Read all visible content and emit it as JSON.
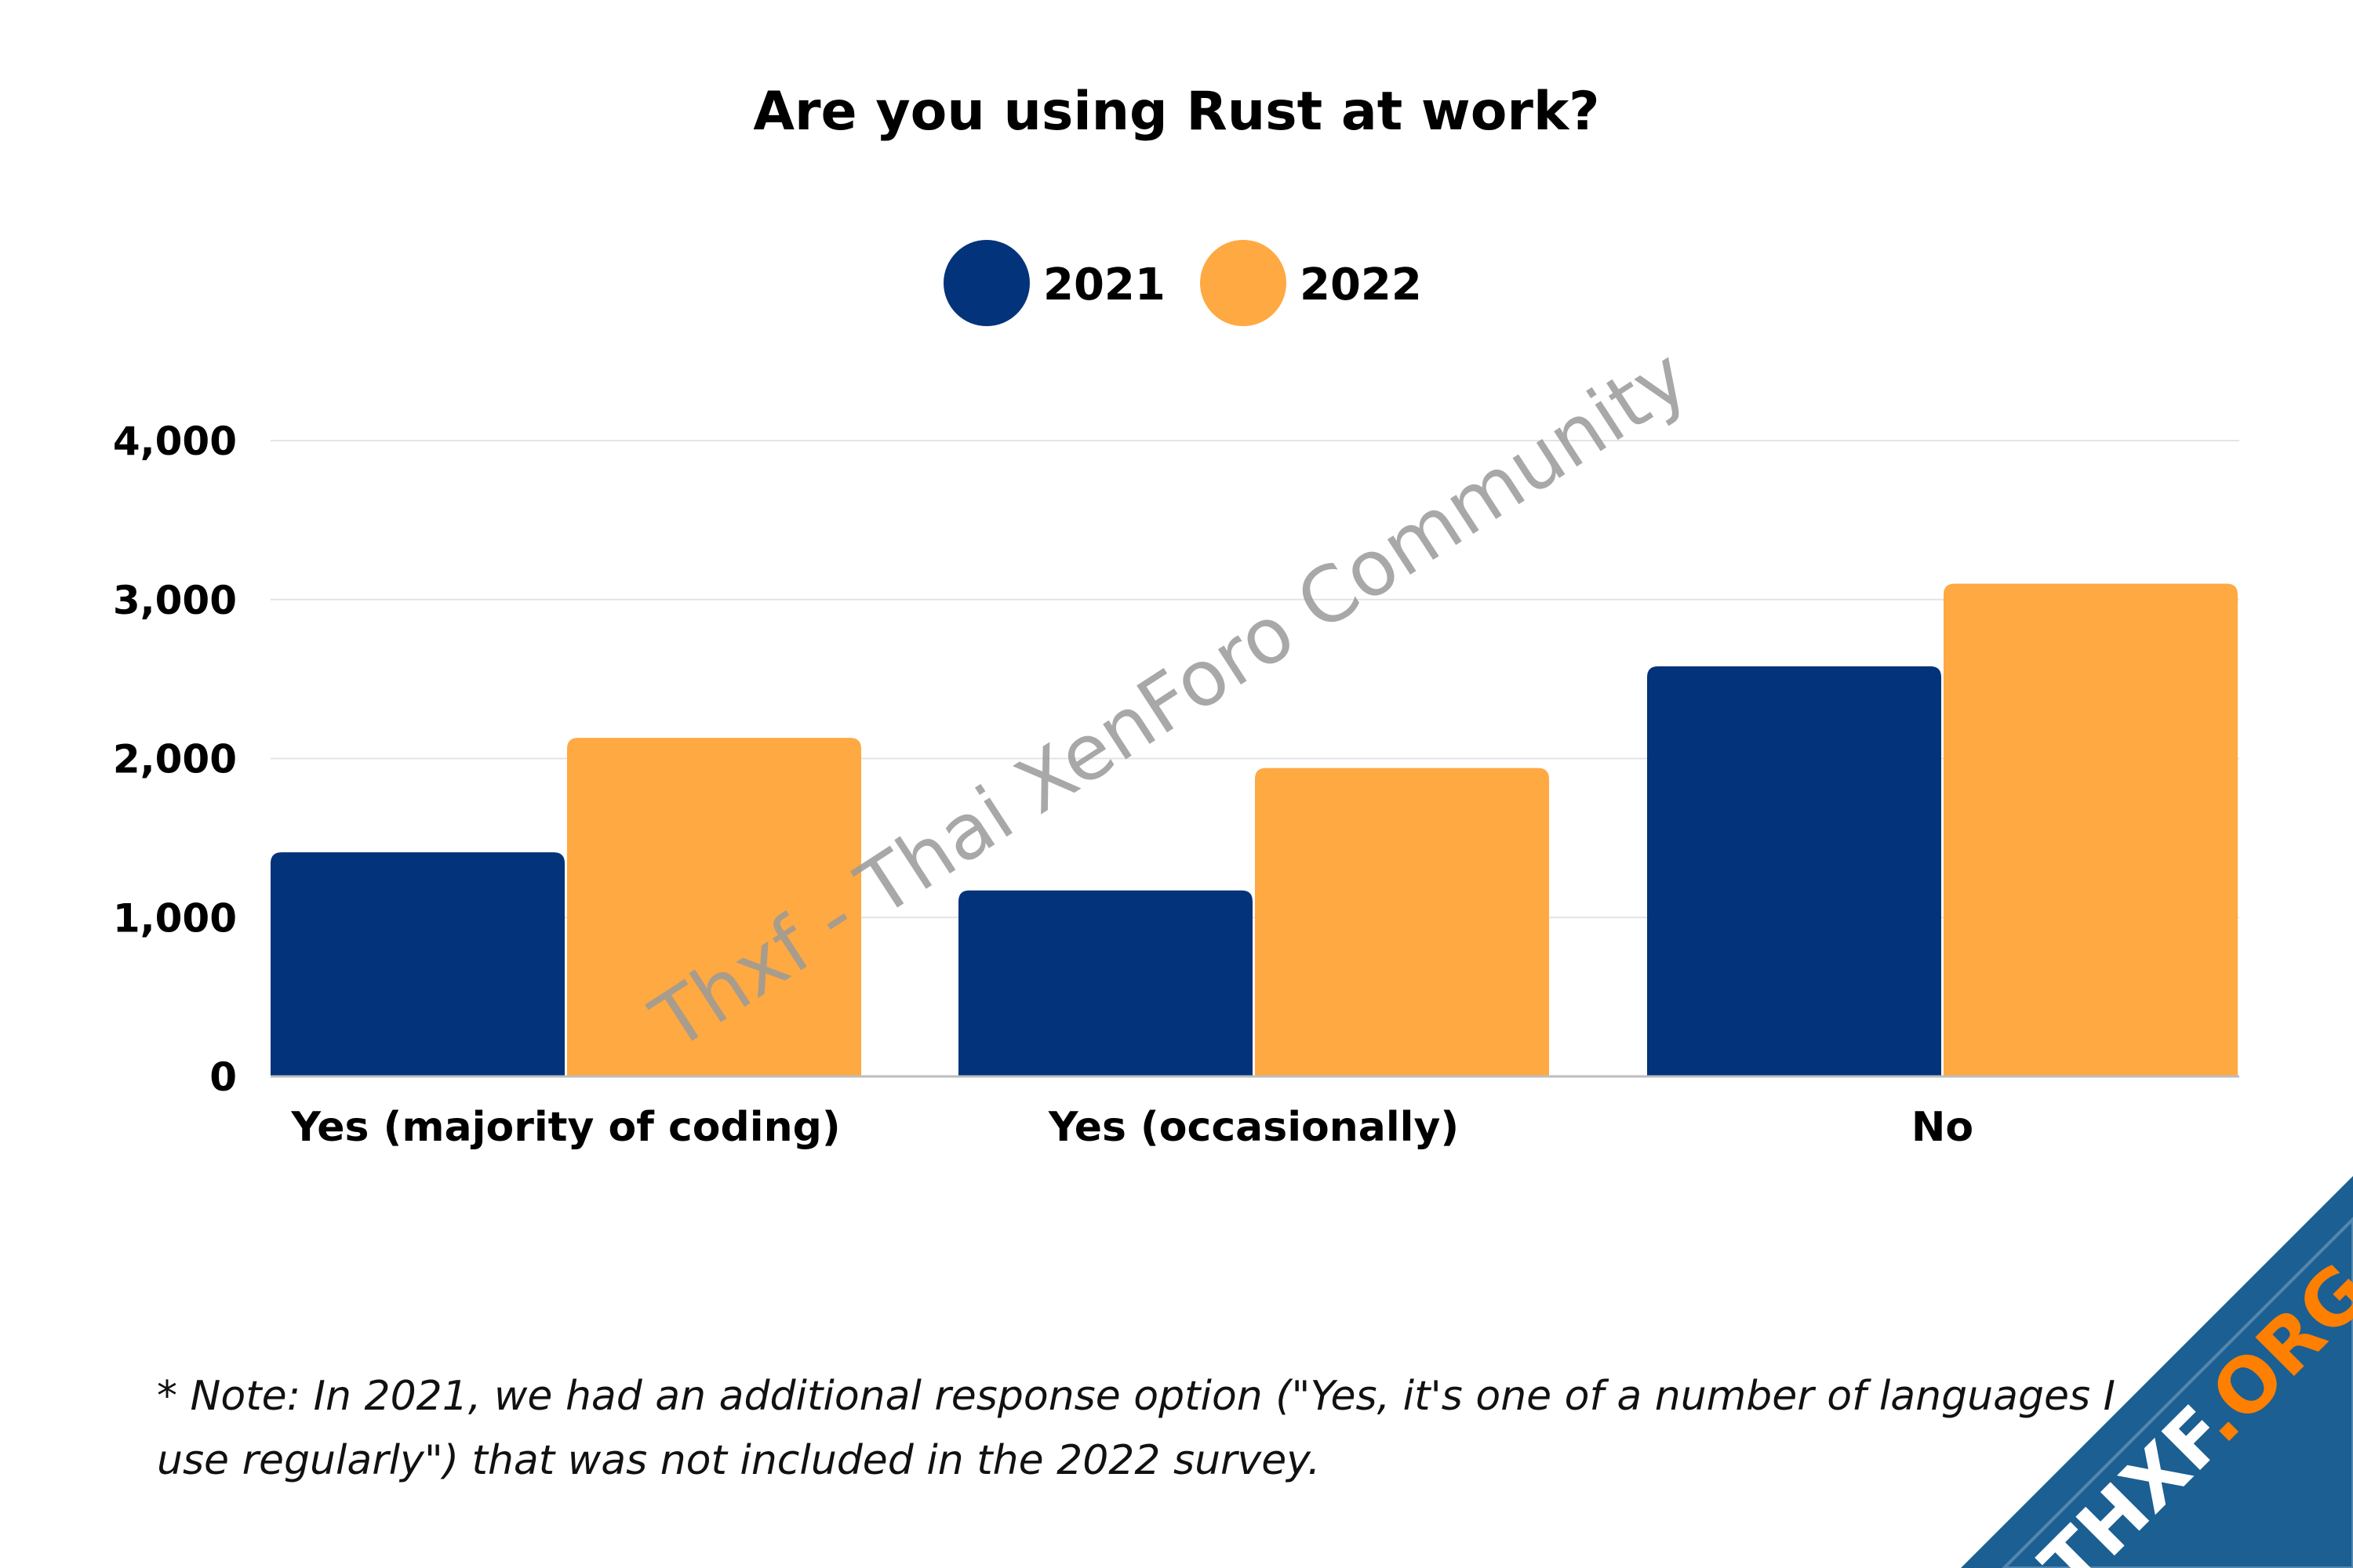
{
  "chart_data": {
    "type": "bar",
    "title": "Are you using Rust at work?",
    "categories": [
      "Yes (majority of coding)",
      "Yes (occasionally)",
      "No"
    ],
    "series": [
      {
        "name": "2021",
        "color": "#03337a",
        "values": [
          1410,
          1170,
          2580
        ]
      },
      {
        "name": "2022",
        "color": "#fea942",
        "values": [
          2130,
          1940,
          3100
        ]
      }
    ],
    "yticks": [
      "0",
      "1,000",
      "2,000",
      "3,000",
      "4,000"
    ],
    "ylim": [
      0,
      4000
    ],
    "xlabel": "",
    "ylabel": "",
    "grid": true,
    "legend_position": "top-center"
  },
  "note": "* Note: In 2021, we had an additional response option (\"Yes, it's one of a number of languages I use regularly\") that was not included in the 2022 survey.",
  "watermark": "Thxf - Thai XenForo Community",
  "logo": {
    "text": "THXF.ORG",
    "color": "#1b5f93",
    "accent": "#ff7f00"
  }
}
